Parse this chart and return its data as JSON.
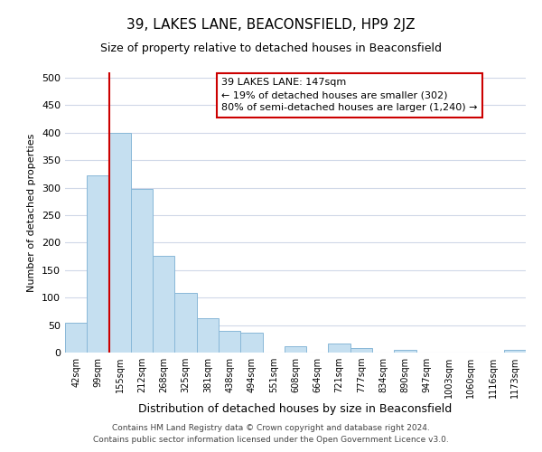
{
  "title": "39, LAKES LANE, BEACONSFIELD, HP9 2JZ",
  "subtitle": "Size of property relative to detached houses in Beaconsfield",
  "xlabel": "Distribution of detached houses by size in Beaconsfield",
  "ylabel": "Number of detached properties",
  "bar_color": "#c5dff0",
  "bar_edge_color": "#89b8d8",
  "vline_color": "#cc0000",
  "vline_x": 2.0,
  "categories": [
    "42sqm",
    "99sqm",
    "155sqm",
    "212sqm",
    "268sqm",
    "325sqm",
    "381sqm",
    "438sqm",
    "494sqm",
    "551sqm",
    "608sqm",
    "664sqm",
    "721sqm",
    "777sqm",
    "834sqm",
    "890sqm",
    "947sqm",
    "1003sqm",
    "1060sqm",
    "1116sqm",
    "1173sqm"
  ],
  "values": [
    55,
    322,
    400,
    298,
    176,
    108,
    63,
    40,
    37,
    0,
    12,
    0,
    17,
    9,
    0,
    5,
    0,
    0,
    0,
    0,
    5
  ],
  "ylim": [
    0,
    510
  ],
  "yticks": [
    0,
    50,
    100,
    150,
    200,
    250,
    300,
    350,
    400,
    450,
    500
  ],
  "annotation_title": "39 LAKES LANE: 147sqm",
  "annotation_line1": "← 19% of detached houses are smaller (302)",
  "annotation_line2": "80% of semi-detached houses are larger (1,240) →",
  "footer1": "Contains HM Land Registry data © Crown copyright and database right 2024.",
  "footer2": "Contains public sector information licensed under the Open Government Licence v3.0.",
  "background_color": "#ffffff",
  "grid_color": "#d0d8e8"
}
